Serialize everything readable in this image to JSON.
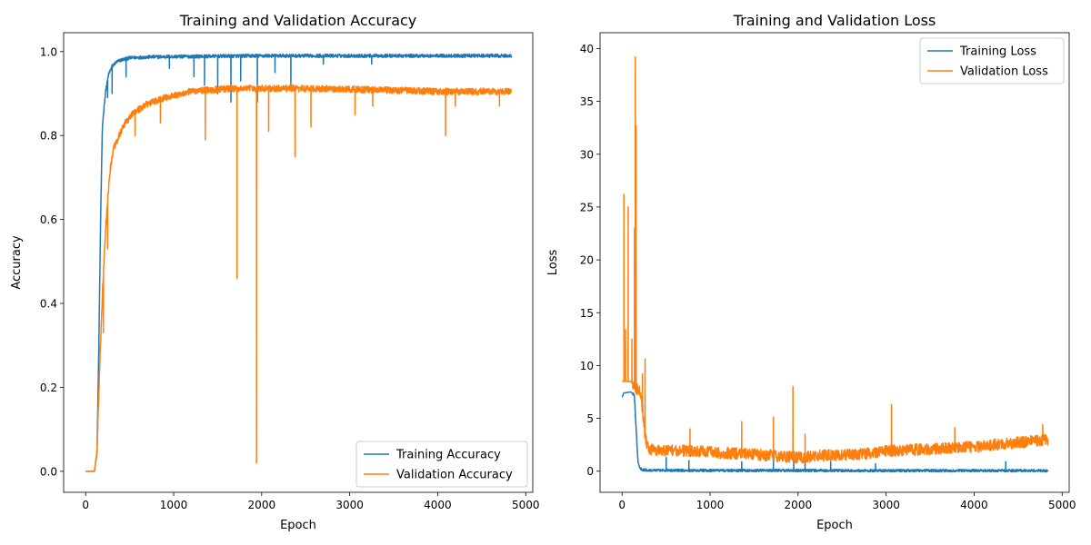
{
  "chart_data": [
    {
      "type": "line",
      "title": "Training and Validation Accuracy",
      "xlabel": "Epoch",
      "ylabel": "Accuracy",
      "xlim": [
        -250,
        5080
      ],
      "ylim": [
        -0.05,
        1.045
      ],
      "xticks": [
        0,
        1000,
        2000,
        3000,
        4000,
        5000
      ],
      "xtick_labels": [
        "0",
        "1000",
        "2000",
        "3000",
        "4000",
        "5000"
      ],
      "yticks": [
        0.0,
        0.2,
        0.4,
        0.6,
        0.8,
        1.0
      ],
      "ytick_labels": [
        "0.0",
        "0.2",
        "0.4",
        "0.6",
        "0.8",
        "1.0"
      ],
      "grid": false,
      "legend": "lower-right",
      "series": [
        {
          "name": "Training Accuracy",
          "color": "#1f77b4",
          "x": [
            0,
            100,
            130,
            150,
            170,
            190,
            210,
            230,
            260,
            300,
            350,
            400,
            500,
            700,
            1000,
            1500,
            2000,
            2500,
            3000,
            4000,
            4840
          ],
          "y": [
            0.0,
            0.0,
            0.05,
            0.3,
            0.6,
            0.82,
            0.87,
            0.91,
            0.945,
            0.965,
            0.975,
            0.98,
            0.985,
            0.987,
            0.988,
            0.989,
            0.99,
            0.99,
            0.99,
            0.99,
            0.99
          ],
          "noise": 0.004,
          "spikes": [
            {
              "x": 250,
              "y": 0.89
            },
            {
              "x": 300,
              "y": 0.9
            },
            {
              "x": 460,
              "y": 0.94
            },
            {
              "x": 950,
              "y": 0.96
            },
            {
              "x": 1230,
              "y": 0.94
            },
            {
              "x": 1350,
              "y": 0.92
            },
            {
              "x": 1500,
              "y": 0.9
            },
            {
              "x": 1650,
              "y": 0.88
            },
            {
              "x": 1760,
              "y": 0.93
            },
            {
              "x": 1950,
              "y": 0.88
            },
            {
              "x": 2150,
              "y": 0.95
            },
            {
              "x": 2330,
              "y": 0.91
            },
            {
              "x": 2700,
              "y": 0.97
            },
            {
              "x": 3250,
              "y": 0.97
            }
          ]
        },
        {
          "name": "Validation Accuracy",
          "color": "#ff7f0e",
          "x": [
            0,
            100,
            130,
            160,
            190,
            220,
            250,
            280,
            320,
            380,
            450,
            550,
            700,
            900,
            1200,
            1500,
            1800,
            2100,
            2500,
            3000,
            3500,
            4000,
            4500,
            4840
          ],
          "y": [
            0.0,
            0.0,
            0.05,
            0.25,
            0.42,
            0.55,
            0.65,
            0.72,
            0.77,
            0.8,
            0.83,
            0.855,
            0.875,
            0.89,
            0.905,
            0.91,
            0.912,
            0.912,
            0.912,
            0.91,
            0.908,
            0.905,
            0.905,
            0.905
          ],
          "noise": 0.008,
          "spikes": [
            {
              "x": 200,
              "y": 0.33
            },
            {
              "x": 230,
              "y": 0.6
            },
            {
              "x": 250,
              "y": 0.53
            },
            {
              "x": 560,
              "y": 0.8
            },
            {
              "x": 850,
              "y": 0.83
            },
            {
              "x": 1360,
              "y": 0.79
            },
            {
              "x": 1720,
              "y": 0.46
            },
            {
              "x": 1940,
              "y": 0.02
            },
            {
              "x": 2080,
              "y": 0.81
            },
            {
              "x": 2380,
              "y": 0.75
            },
            {
              "x": 2560,
              "y": 0.82
            },
            {
              "x": 3060,
              "y": 0.85
            },
            {
              "x": 3260,
              "y": 0.87
            },
            {
              "x": 4090,
              "y": 0.8
            },
            {
              "x": 4200,
              "y": 0.87
            },
            {
              "x": 4700,
              "y": 0.87
            }
          ]
        }
      ]
    },
    {
      "type": "line",
      "title": "Training and Validation Loss",
      "xlabel": "Epoch",
      "ylabel": "Loss",
      "xlim": [
        -250,
        5080
      ],
      "ylim": [
        -2.0,
        41.5
      ],
      "xticks": [
        0,
        1000,
        2000,
        3000,
        4000,
        5000
      ],
      "xtick_labels": [
        "0",
        "1000",
        "2000",
        "3000",
        "4000",
        "5000"
      ],
      "yticks": [
        0,
        5,
        10,
        15,
        20,
        25,
        30,
        35,
        40
      ],
      "ytick_labels": [
        "0",
        "5",
        "10",
        "15",
        "20",
        "25",
        "30",
        "35",
        "40"
      ],
      "grid": false,
      "legend": "upper-right",
      "series": [
        {
          "name": "Training Loss",
          "color": "#1f77b4",
          "x": [
            0,
            20,
            100,
            140,
            160,
            180,
            200,
            230,
            280,
            400,
            1000,
            2000,
            3000,
            4000,
            4840
          ],
          "y": [
            7.0,
            7.4,
            7.5,
            7.2,
            4.0,
            1.0,
            0.3,
            0.15,
            0.1,
            0.08,
            0.07,
            0.06,
            0.05,
            0.05,
            0.05
          ],
          "noise": 0.12,
          "spikes": [
            {
              "x": 500,
              "y": 1.3
            },
            {
              "x": 760,
              "y": 1.0
            },
            {
              "x": 1360,
              "y": 0.9
            },
            {
              "x": 1720,
              "y": 1.1
            },
            {
              "x": 1950,
              "y": 1.3
            },
            {
              "x": 2080,
              "y": 0.9
            },
            {
              "x": 2370,
              "y": 0.9
            },
            {
              "x": 2880,
              "y": 0.7
            },
            {
              "x": 4360,
              "y": 0.9
            }
          ]
        },
        {
          "name": "Validation Loss",
          "color": "#ff7f0e",
          "x": [
            0,
            100,
            150,
            200,
            230,
            260,
            290,
            350,
            500,
            800,
            1200,
            1500,
            1800,
            2000,
            2300,
            2700,
            3000,
            3500,
            4000,
            4500,
            4840
          ],
          "y": [
            8.5,
            8.5,
            8.0,
            7.5,
            6.0,
            3.5,
            2.2,
            2.0,
            2.0,
            1.9,
            1.7,
            1.6,
            1.4,
            1.3,
            1.5,
            1.6,
            1.9,
            2.1,
            2.3,
            2.7,
            3.0
          ],
          "noise": 0.55,
          "spikes": [
            {
              "x": 20,
              "y": 26.2
            },
            {
              "x": 40,
              "y": 13.4
            },
            {
              "x": 70,
              "y": 25.0
            },
            {
              "x": 110,
              "y": 12.5
            },
            {
              "x": 140,
              "y": 23.0
            },
            {
              "x": 150,
              "y": 39.2
            },
            {
              "x": 160,
              "y": 32.7
            },
            {
              "x": 230,
              "y": 9.2
            },
            {
              "x": 260,
              "y": 10.6
            },
            {
              "x": 770,
              "y": 4.0
            },
            {
              "x": 1360,
              "y": 4.7
            },
            {
              "x": 1720,
              "y": 5.1
            },
            {
              "x": 1940,
              "y": 8.0
            },
            {
              "x": 2080,
              "y": 3.5
            },
            {
              "x": 3060,
              "y": 6.3
            },
            {
              "x": 3780,
              "y": 4.1
            },
            {
              "x": 4780,
              "y": 4.4
            }
          ]
        }
      ]
    }
  ]
}
